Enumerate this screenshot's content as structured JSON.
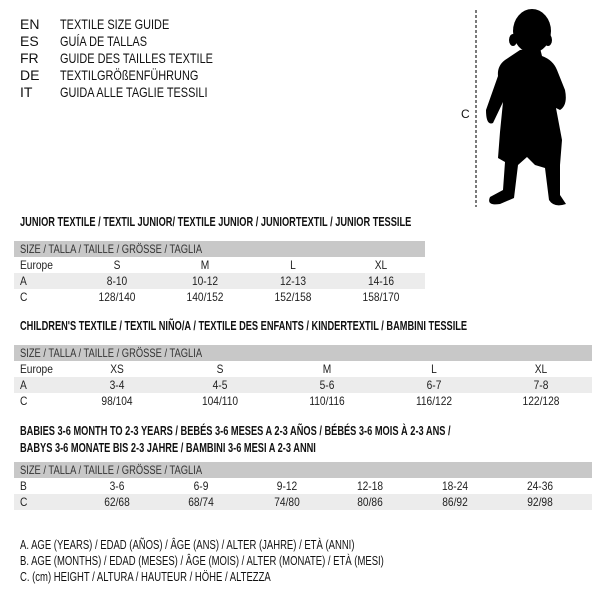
{
  "languages": [
    {
      "code": "EN",
      "text": "TEXTILE SIZE GUIDE"
    },
    {
      "code": "ES",
      "text": "GUÍA DE TALLAS"
    },
    {
      "code": "FR",
      "text": "GUIDE DES TAILLES TEXTILE"
    },
    {
      "code": "DE",
      "text": "TEXTILGRÖßENFÜHRUNG"
    },
    {
      "code": "IT",
      "text": "GUIDA ALLE TAGLIE TESSILI"
    }
  ],
  "figure": {
    "measure_label": "C",
    "icon": "baby-silhouette"
  },
  "tables": [
    {
      "title": [
        "JUNIOR TEXTILE / TEXTIL JUNIOR/ TEXTILE JUNIOR / JUNIORTEXTIL / JUNIOR TESSILE"
      ],
      "header": "SIZE / TALLA / TAILLE / GRÖSSE / TAGLIA",
      "rows": [
        {
          "label": "Europe",
          "values": [
            "S",
            "M",
            "L",
            "XL"
          ]
        },
        {
          "label": "A",
          "values": [
            "8-10",
            "10-12",
            "12-13",
            "14-16"
          ]
        },
        {
          "label": "C",
          "values": [
            "128/140",
            "140/152",
            "152/158",
            "158/170"
          ]
        }
      ]
    },
    {
      "title": [
        "CHILDREN'S TEXTILE / TEXTIL NIÑO/A / TEXTILE DES ENFANTS / KINDERTEXTIL / BAMBINI TESSILE"
      ],
      "header": "SIZE / TALLA / TAILLE / GRÖSSE / TAGLIA",
      "rows": [
        {
          "label": "Europe",
          "values": [
            "XS",
            "S",
            "M",
            "L",
            "XL"
          ]
        },
        {
          "label": "A",
          "values": [
            "3-4",
            "4-5",
            "5-6",
            "6-7",
            "7-8"
          ]
        },
        {
          "label": "C",
          "values": [
            "98/104",
            "104/110",
            "110/116",
            "116/122",
            "122/128"
          ]
        }
      ]
    },
    {
      "title": [
        "BABIES 3-6 MONTH TO 2-3 YEARS / BEBÉS 3-6 MESES A 2-3 AÑOS / BÉBÉS 3-6 MOIS À 2-3 ANS /",
        "BABYS 3-6 MONATE BIS 2-3 JAHRE / BAMBINI 3-6 MESI A 2-3 ANNI"
      ],
      "header": "SIZE / TALLA / TAILLE / GRÖSSE / TAGLIA",
      "rows": [
        {
          "label": "B",
          "values": [
            "3-6",
            "6-9",
            "9-12",
            "12-18",
            "18-24",
            "24-36"
          ]
        },
        {
          "label": "C",
          "values": [
            "62/68",
            "68/74",
            "74/80",
            "80/86",
            "86/92",
            "92/98"
          ]
        }
      ]
    }
  ],
  "legend": [
    "A. AGE (YEARS) / EDAD (AÑOS) / ÂGE (ANS) / ALTER (JAHRE) / ETÀ (ANNI)",
    "B. AGE (MONTHS) / EDAD (MESES) / ÂGE (MOIS) / ALTER (MONATE) / ETÀ (MESI)",
    "C. (cm) HEIGHT / ALTURA / HAUTEUR / HÖHE / ALTEZZA"
  ]
}
